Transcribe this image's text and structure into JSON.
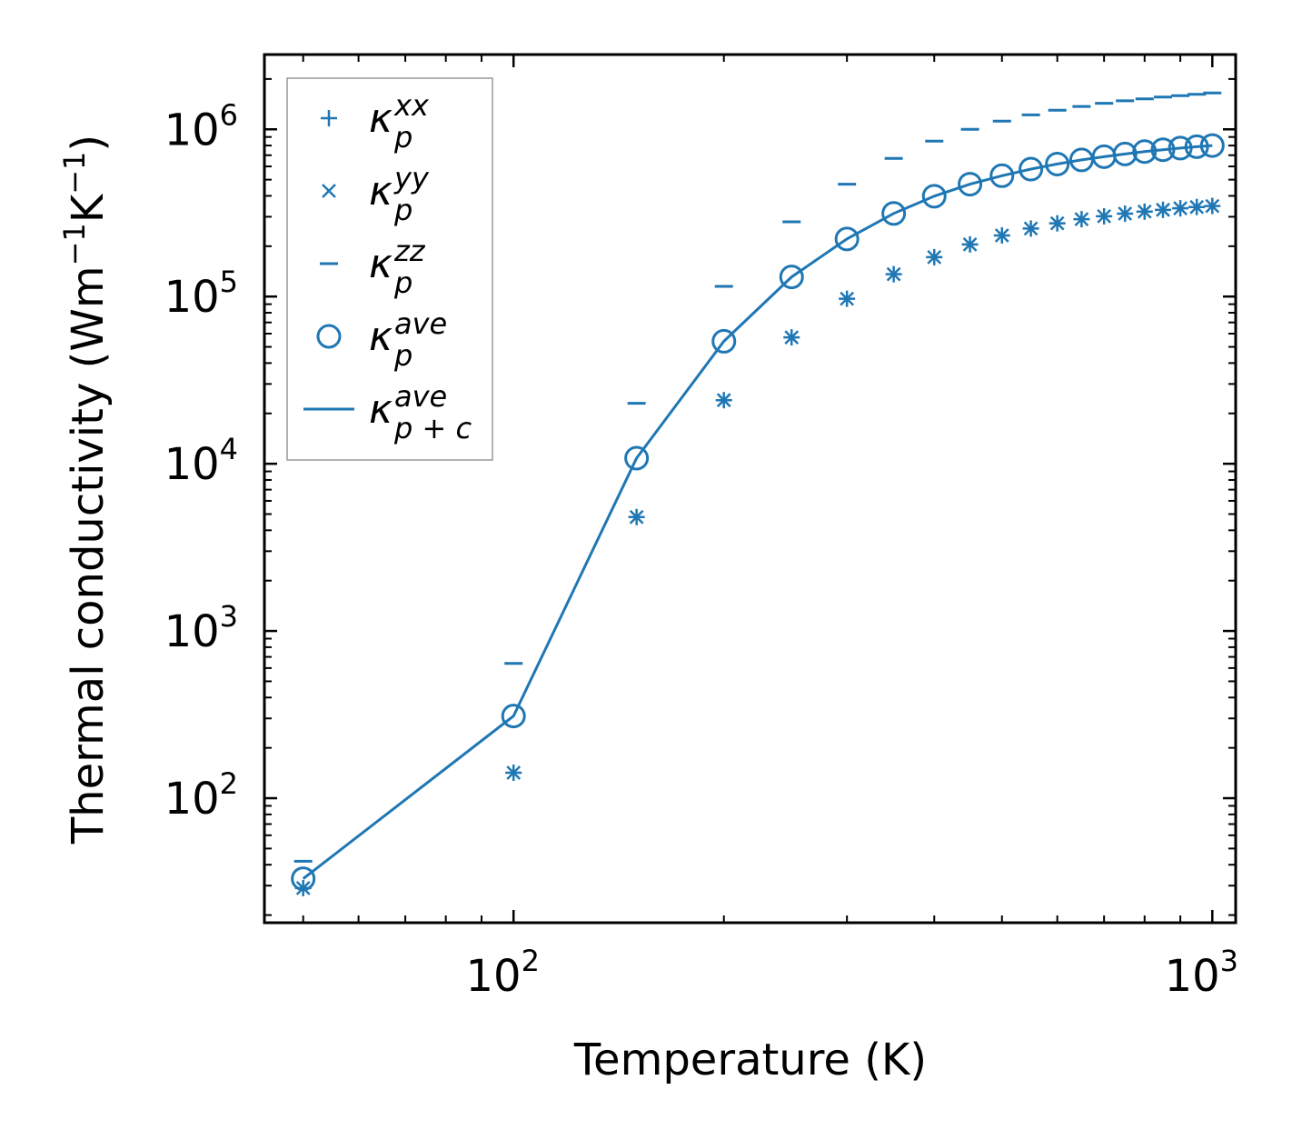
{
  "chart_data": {
    "type": "scatter",
    "xscale": "log",
    "yscale": "log",
    "xlabel": "Temperature (K)",
    "ylabel": {
      "text": "Thermal conductivity (Wm",
      "exp1": "−1",
      "mid": "K",
      "exp2": "−1",
      "close": ")"
    },
    "xlim": [
      44,
      1080
    ],
    "ylim": [
      18,
      2800000
    ],
    "x_ticks": [
      {
        "base": "10",
        "exp": "2",
        "value": 100
      },
      {
        "base": "10",
        "exp": "3",
        "value": 1000
      }
    ],
    "y_ticks": [
      {
        "base": "10",
        "exp": "2",
        "value": 100
      },
      {
        "base": "10",
        "exp": "3",
        "value": 1000
      },
      {
        "base": "10",
        "exp": "4",
        "value": 10000
      },
      {
        "base": "10",
        "exp": "5",
        "value": 100000
      },
      {
        "base": "10",
        "exp": "6",
        "value": 1000000
      }
    ],
    "x": [
      50,
      100,
      150,
      200,
      250,
      300,
      350,
      400,
      450,
      500,
      550,
      600,
      650,
      700,
      750,
      800,
      850,
      900,
      950,
      1000
    ],
    "series": [
      {
        "name": "κ_p^xx",
        "marker": "plus",
        "values": [
          29,
          142,
          4800,
          24000,
          57000,
          97000,
          136000,
          172000,
          205000,
          232000,
          255000,
          274000,
          290000,
          302000,
          313000,
          322000,
          330000,
          337000,
          343000,
          348000
        ]
      },
      {
        "name": "κ_p^yy",
        "marker": "x",
        "values": [
          29,
          142,
          4800,
          24000,
          57000,
          97000,
          136000,
          172000,
          205000,
          232000,
          255000,
          274000,
          290000,
          302000,
          313000,
          322000,
          330000,
          337000,
          343000,
          348000
        ]
      },
      {
        "name": "κ_p^zz",
        "marker": "hline",
        "values": [
          42,
          640,
          23000,
          115000,
          280000,
          470000,
          670000,
          850000,
          1000000,
          1120000,
          1220000,
          1300000,
          1370000,
          1430000,
          1480000,
          1520000,
          1560000,
          1590000,
          1620000,
          1650000
        ]
      },
      {
        "name": "κ_p^ave",
        "marker": "circle",
        "values": [
          33,
          310,
          10800,
          54000,
          131000,
          221000,
          314000,
          398000,
          470000,
          528000,
          578000,
          620000,
          656000,
          686000,
          712000,
          736000,
          755000,
          772000,
          787000,
          800000
        ]
      },
      {
        "name": "κ_p+c^ave",
        "marker": "line",
        "values": [
          33,
          310,
          10800,
          54000,
          131000,
          221000,
          314000,
          398000,
          470000,
          528000,
          578000,
          620000,
          656000,
          686000,
          712000,
          736000,
          755000,
          772000,
          787000,
          800000
        ]
      }
    ],
    "color": "#1f77b4",
    "legend": {
      "placement": "top-left",
      "entries": [
        {
          "base": "κ",
          "sup": "xx",
          "sub": "p"
        },
        {
          "base": "κ",
          "sup": "yy",
          "sub": "p"
        },
        {
          "base": "κ",
          "sup": "zz",
          "sub": "p"
        },
        {
          "base": "κ",
          "sup": "ave",
          "sub": "p"
        },
        {
          "base": "κ",
          "sup": "ave",
          "sub": "p + c"
        }
      ]
    }
  }
}
